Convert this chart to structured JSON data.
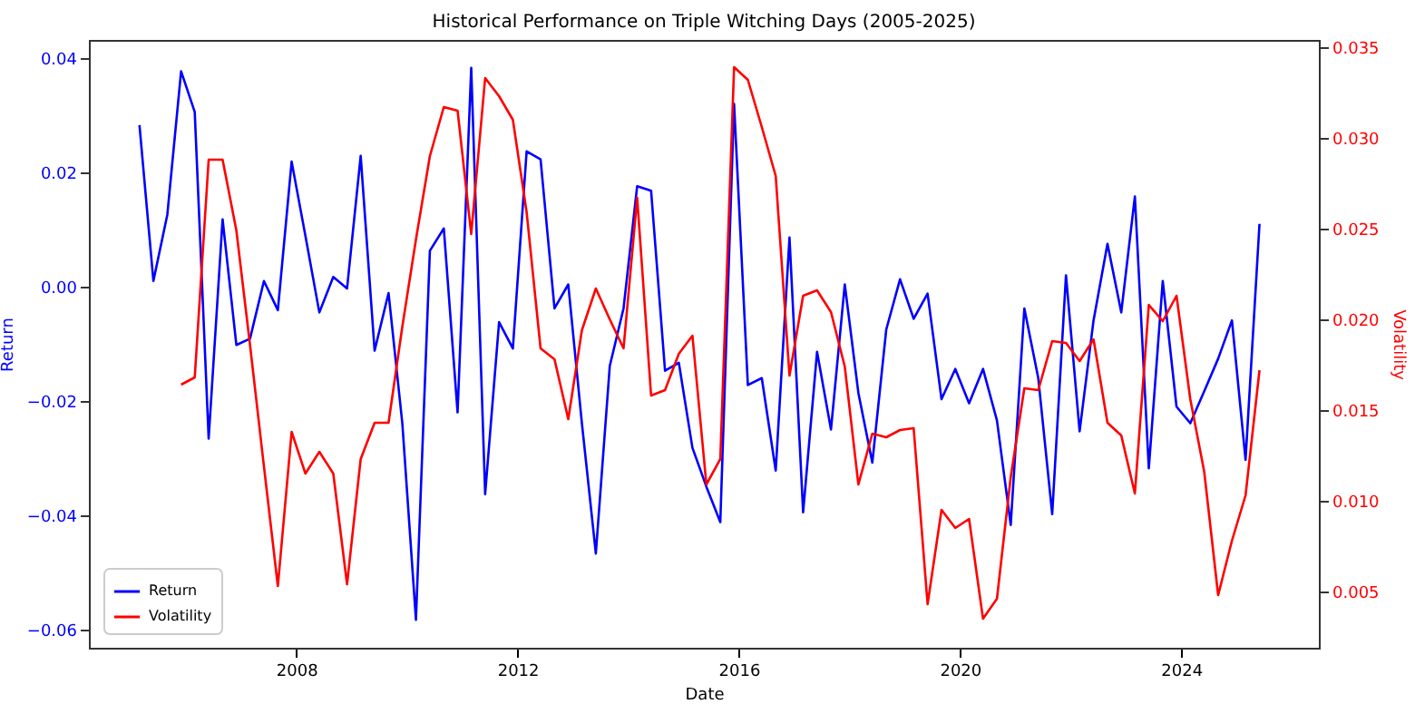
{
  "chart_data": {
    "type": "line",
    "title": "Historical Performance on Triple Witching Days (2005-2025)",
    "xlabel": "Date",
    "ylabel": "Return",
    "y2label": "Volatility",
    "x": [
      "2005-03",
      "2005-06",
      "2005-09",
      "2005-12",
      "2006-03",
      "2006-06",
      "2006-09",
      "2006-12",
      "2007-03",
      "2007-06",
      "2007-09",
      "2007-12",
      "2008-03",
      "2008-06",
      "2008-09",
      "2008-12",
      "2009-03",
      "2009-06",
      "2009-09",
      "2009-12",
      "2010-03",
      "2010-06",
      "2010-09",
      "2010-12",
      "2011-03",
      "2011-06",
      "2011-09",
      "2011-12",
      "2012-03",
      "2012-06",
      "2012-09",
      "2012-12",
      "2013-03",
      "2013-06",
      "2013-09",
      "2013-12",
      "2014-03",
      "2014-06",
      "2014-09",
      "2014-12",
      "2015-03",
      "2015-06",
      "2015-09",
      "2015-12",
      "2016-03",
      "2016-06",
      "2016-09",
      "2016-12",
      "2017-03",
      "2017-06",
      "2017-09",
      "2017-12",
      "2018-03",
      "2018-06",
      "2018-09",
      "2018-12",
      "2019-03",
      "2019-06",
      "2019-09",
      "2019-12",
      "2020-03",
      "2020-06",
      "2020-09",
      "2020-12",
      "2021-03",
      "2021-06",
      "2021-09",
      "2021-12",
      "2022-03",
      "2022-06",
      "2022-09",
      "2022-12",
      "2023-03",
      "2023-06",
      "2023-09",
      "2023-12",
      "2024-03",
      "2024-06",
      "2024-09",
      "2024-12",
      "2025-03",
      "2025-06"
    ],
    "series": [
      {
        "name": "Return",
        "color": "#0000ff",
        "values": [
          0.0283,
          0.001,
          0.0126,
          0.0377,
          0.0306,
          -0.0266,
          0.0118,
          -0.0102,
          -0.0091,
          0.001,
          -0.0041,
          0.0219,
          0.0089,
          -0.0045,
          0.0017,
          -0.0003,
          0.0229,
          -0.0112,
          -0.0011,
          -0.0239,
          -0.0583,
          0.0063,
          0.0102,
          -0.022,
          0.0383,
          -0.0363,
          -0.0062,
          -0.0108,
          0.0237,
          0.0223,
          -0.0038,
          0.0004,
          -0.0239,
          -0.0467,
          -0.0139,
          -0.0038,
          0.0176,
          0.0168,
          -0.0147,
          -0.0133,
          -0.0282,
          -0.035,
          -0.0412,
          0.032,
          -0.0172,
          -0.016,
          -0.0322,
          0.0086,
          -0.0395,
          -0.0114,
          -0.025,
          0.0004,
          -0.0186,
          -0.0308,
          -0.0075,
          0.0013,
          -0.0056,
          -0.0012,
          -0.0197,
          -0.0144,
          -0.0204,
          -0.0144,
          -0.0234,
          -0.0417,
          -0.0038,
          -0.016,
          -0.0398,
          0.002,
          -0.0253,
          -0.0059,
          0.0075,
          -0.0045,
          0.0158,
          -0.0318,
          0.001,
          -0.021,
          -0.0239,
          -0.0183,
          -0.0126,
          -0.0059,
          -0.0303,
          0.011
        ]
      },
      {
        "name": "Volatility",
        "color": "#ff0000",
        "axis": "y2",
        "values": [
          null,
          null,
          null,
          0.0164,
          0.0168,
          0.0288,
          0.0288,
          0.0249,
          0.0186,
          0.0119,
          0.0053,
          0.0138,
          0.0115,
          0.0127,
          0.0115,
          0.0054,
          0.0123,
          0.0143,
          0.0143,
          0.0196,
          0.0244,
          0.029,
          0.0317,
          0.0315,
          0.0247,
          0.0333,
          0.0323,
          0.031,
          0.0259,
          0.0184,
          0.0178,
          0.0145,
          0.0194,
          0.0217,
          0.02,
          0.0184,
          0.0267,
          0.0158,
          0.0161,
          0.0181,
          0.0191,
          0.0109,
          0.0123,
          0.0339,
          0.0332,
          0.0306,
          0.0279,
          0.0169,
          0.0213,
          0.0216,
          0.0204,
          0.0174,
          0.0109,
          0.0137,
          0.0135,
          0.0139,
          0.014,
          0.0043,
          0.0095,
          0.0085,
          0.009,
          0.0035,
          0.0046,
          0.0113,
          0.0162,
          0.0161,
          0.0188,
          0.0187,
          0.0177,
          0.0189,
          0.0143,
          0.0136,
          0.0104,
          0.0208,
          0.0199,
          0.0213,
          0.0156,
          0.0116,
          0.0048,
          0.0078,
          0.0103,
          0.0172
        ]
      }
    ],
    "xlim": [
      "2004-04-01",
      "2026-06-28"
    ],
    "xticks": [
      {
        "value": "2008",
        "label": "2008"
      },
      {
        "value": "2012",
        "label": "2012"
      },
      {
        "value": "2016",
        "label": "2016"
      },
      {
        "value": "2020",
        "label": "2020"
      },
      {
        "value": "2024",
        "label": "2024"
      }
    ],
    "ylim": [
      -0.0632,
      0.0432
    ],
    "yticks": [
      {
        "value": -0.06,
        "label": "−0.06"
      },
      {
        "value": -0.04,
        "label": "−0.04"
      },
      {
        "value": -0.02,
        "label": "−0.02"
      },
      {
        "value": 0,
        "label": "0.00"
      },
      {
        "value": 0.02,
        "label": "0.02"
      },
      {
        "value": 0.04,
        "label": "0.04"
      }
    ],
    "y2lim": [
      0.0019,
      0.0354
    ],
    "y2ticks": [
      {
        "value": 0.005,
        "label": "0.005"
      },
      {
        "value": 0.01,
        "label": "0.010"
      },
      {
        "value": 0.015,
        "label": "0.015"
      },
      {
        "value": 0.02,
        "label": "0.020"
      },
      {
        "value": 0.025,
        "label": "0.025"
      },
      {
        "value": 0.03,
        "label": "0.030"
      },
      {
        "value": 0.035,
        "label": "0.035"
      }
    ],
    "legend": "bottom left",
    "grid": false,
    "line_style": "solid",
    "marker": "none"
  }
}
